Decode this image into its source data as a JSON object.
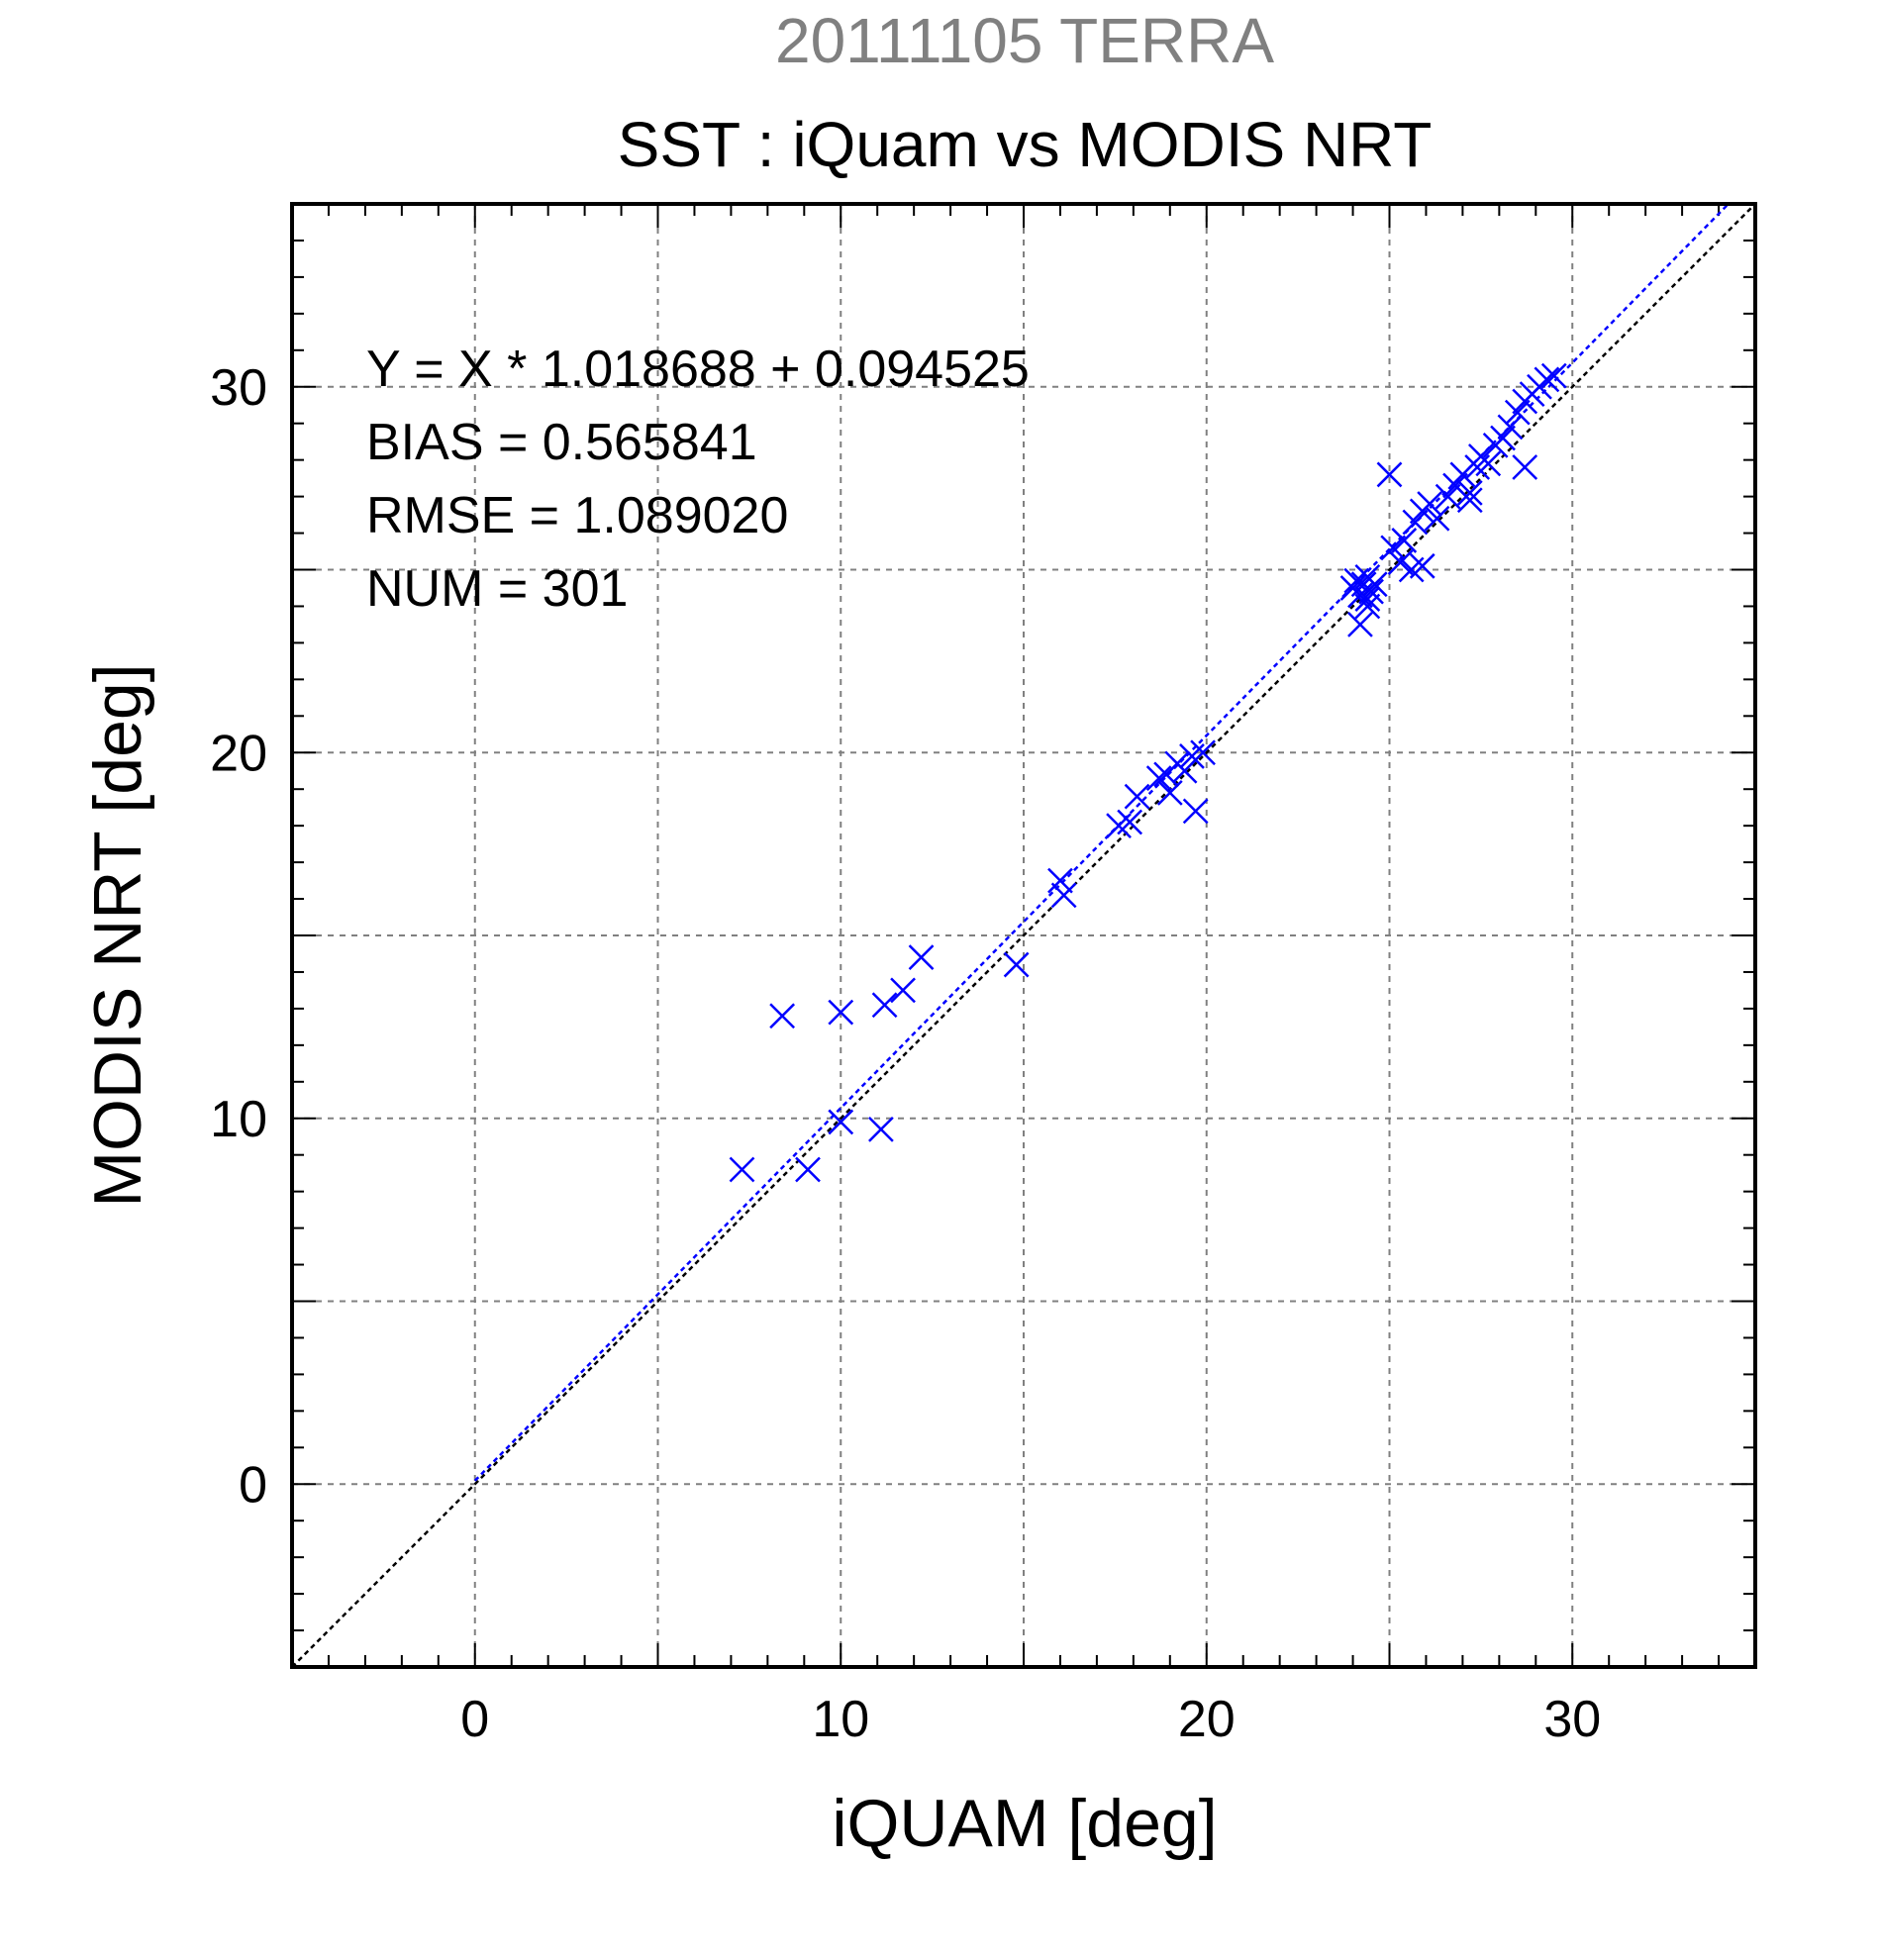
{
  "chart_data": {
    "type": "scatter",
    "title": "SST : iQuam vs MODIS NRT",
    "subtitle": "20111105 TERRA",
    "xlabel": "iQUAM [deg]",
    "ylabel": "MODIS NRT [deg]",
    "xlim": [
      -5,
      35
    ],
    "ylim": [
      -5,
      35
    ],
    "xticks": [
      0,
      10,
      20,
      30
    ],
    "yticks": [
      0,
      10,
      20,
      30
    ],
    "xtick_labels": [
      "0",
      "10",
      "20",
      "30"
    ],
    "ytick_labels": [
      "0",
      "10",
      "20",
      "30"
    ],
    "grid": true,
    "grid_style": "dashed",
    "annotations": [
      "Y = X * 1.018688 + 0.094525",
      "BIAS = 0.565841",
      "RMSE = 1.089020",
      "NUM = 301"
    ],
    "regression": {
      "slope": 1.018688,
      "intercept": 0.094525
    },
    "colors": {
      "points": "#0000ff",
      "fit_line": "#0000ff",
      "identity_line": "#000000",
      "subtitle": "#808080",
      "grid": "#808080"
    },
    "x": [
      7.3,
      8.4,
      9.1,
      10.0,
      10.0,
      11.1,
      11.2,
      11.7,
      12.2,
      14.8,
      16.0,
      16.1,
      17.6,
      17.9,
      18.1,
      18.7,
      18.9,
      19.0,
      19.2,
      19.4,
      19.6,
      19.7,
      19.9,
      24.0,
      24.1,
      24.2,
      24.3,
      24.4,
      24.5,
      24.6,
      24.2,
      24.4,
      25.0,
      25.1,
      25.3,
      25.4,
      25.6,
      25.7,
      25.9,
      26.1,
      26.3,
      26.6,
      26.8,
      27.0,
      27.2,
      27.4,
      27.5,
      27.7,
      27.9,
      28.1,
      28.3,
      28.5,
      28.7,
      28.9,
      29.1,
      29.3,
      29.5,
      28.7,
      27.2,
      25.9,
      24.4
    ],
    "y": [
      8.6,
      12.8,
      8.6,
      9.9,
      12.9,
      9.7,
      13.1,
      13.5,
      14.4,
      14.2,
      16.5,
      16.1,
      18.0,
      18.1,
      18.8,
      19.3,
      19.4,
      18.9,
      19.7,
      19.5,
      19.9,
      18.4,
      20.0,
      24.5,
      24.7,
      24.3,
      24.6,
      24.8,
      24.4,
      24.6,
      23.5,
      24.2,
      27.6,
      25.6,
      25.2,
      25.8,
      25.0,
      26.3,
      26.6,
      26.8,
      26.4,
      27.0,
      27.3,
      27.6,
      27.1,
      27.8,
      28.1,
      27.9,
      28.4,
      28.6,
      28.9,
      29.3,
      29.6,
      29.8,
      30.0,
      30.2,
      30.3,
      27.8,
      26.9,
      25.1,
      24.0
    ]
  }
}
